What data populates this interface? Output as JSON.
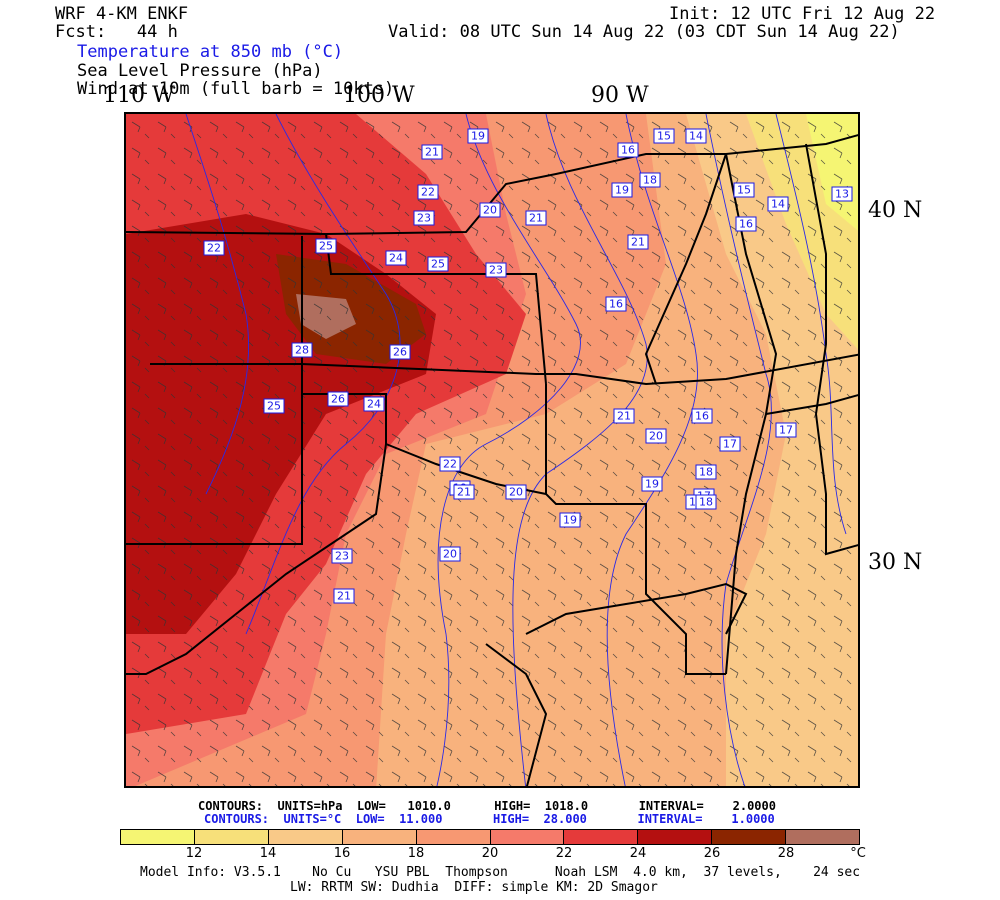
{
  "header": {
    "model": "WRF 4-KM ENKF",
    "fcst": "Fcst:   44 h",
    "init": "Init: 12 UTC Fri 12 Aug 22",
    "valid": "Valid: 08 UTC Sun 14 Aug 22 (03 CDT Sun 14 Aug 22)",
    "field1": "Temperature at 850 mb (°C)",
    "field2": "Sea Level Pressure (hPa)",
    "field3": "Wind at 10m (full barb = 10kts)"
  },
  "axes": {
    "lon_labels": [
      "110 W",
      "100 W",
      "90 W"
    ],
    "lat_labels": [
      "40 N",
      "30 N"
    ]
  },
  "contours": {
    "slp": "CONTOURS:  UNITS=hPa  LOW=   1010.0      HIGH=  1018.0       INTERVAL=    2.0000",
    "temp": "CONTOURS:  UNITS=°C  LOW=  11.000       HIGH=  28.000       INTERVAL=    1.0000"
  },
  "colorbar": {
    "colors": [
      "#f5f573",
      "#f7e07a",
      "#f9c988",
      "#f8b27d",
      "#f79872",
      "#f57a6a",
      "#e53a3a",
      "#b41010",
      "#8b2500",
      "#b06e5e"
    ],
    "ticks": [
      "12",
      "14",
      "16",
      "18",
      "20",
      "22",
      "24",
      "26",
      "28"
    ],
    "unit": "°C"
  },
  "footer": {
    "line1": "Model Info: V3.5.1    No Cu   YSU PBL  Thompson      Noah LSM  4.0 km,  37 levels,    24 sec",
    "line2": "LW: RRTM SW: Dudhia  DIFF: simple KM: 2D Smagor"
  },
  "map_labels": [
    "19",
    "21",
    "22",
    "23",
    "22",
    "25",
    "24",
    "25",
    "23",
    "26",
    "28",
    "26",
    "25",
    "24",
    "23",
    "23",
    "21",
    "19",
    "22",
    "21",
    "20",
    "20",
    "21",
    "20",
    "19",
    "16",
    "15",
    "14",
    "18",
    "15",
    "14",
    "13",
    "19",
    "16",
    "17",
    "18",
    "18",
    "17",
    "20",
    "21",
    "21",
    "19",
    "18",
    "16",
    "17",
    "16"
  ]
}
